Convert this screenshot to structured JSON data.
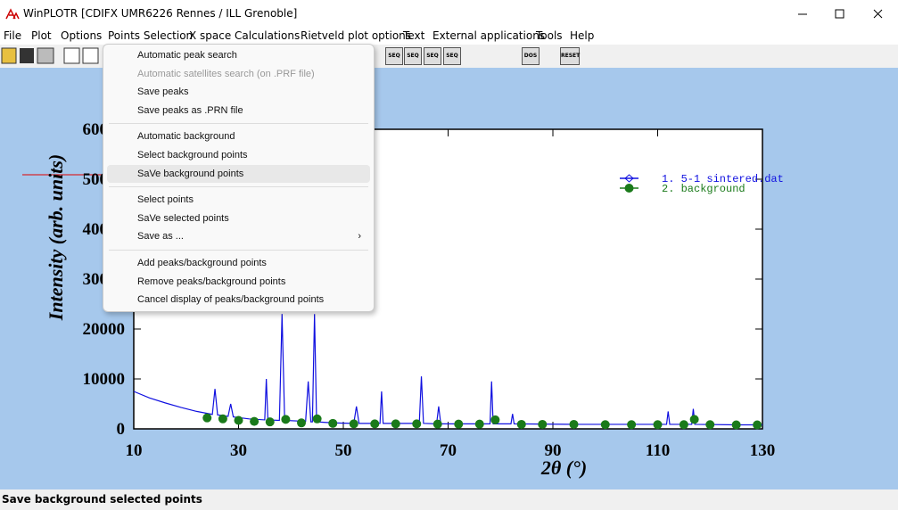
{
  "window": {
    "title": "WinPLOTR [CDIFX UMR6226 Rennes / ILL Grenoble]"
  },
  "menubar": [
    "File",
    "Plot",
    "Options",
    "Points Selection",
    "X space",
    "Calculations",
    "Rietveld plot options",
    "Text",
    "External applications",
    "Tools",
    "Help"
  ],
  "toolbar": [
    "SEQ",
    "SEQ",
    "SEQ",
    "SEQ",
    "DOS",
    "RESET"
  ],
  "menu": {
    "groups": [
      [
        {
          "label": "Automatic peak search"
        },
        {
          "label": "Automatic satellites search (on .PRF file)",
          "disabled": true
        },
        {
          "label": "Save peaks"
        },
        {
          "label": "Save peaks as .PRN file"
        }
      ],
      [
        {
          "label": "Automatic background"
        },
        {
          "label": "Select background points"
        },
        {
          "label": "SaVe background points",
          "highlighted": true
        }
      ],
      [
        {
          "label": "Select points"
        },
        {
          "label": "SaVe selected points"
        },
        {
          "label": "Save as ...",
          "submenu": true
        }
      ],
      [
        {
          "label": "Add peaks/background points"
        },
        {
          "label": "Remove peaks/background points"
        },
        {
          "label": "Cancel display of peaks/background points"
        }
      ]
    ]
  },
  "chart_data": {
    "type": "line",
    "x_label": "2θ (°)",
    "y_label": "Intensity (arb. units)",
    "xlim": [
      10,
      130
    ],
    "xticks": [
      10,
      30,
      50,
      70,
      90,
      110,
      130
    ],
    "ylim": [
      0,
      60000
    ],
    "yticks": [
      0,
      10000,
      20000,
      30000,
      40000,
      50000,
      60000
    ],
    "series": [
      {
        "name": "1. 5-1 sintered.dat",
        "color": "#1010e0",
        "x": [
          10,
          13,
          16,
          19,
          22,
          25,
          25.5,
          26,
          28,
          28.5,
          29,
          32,
          35,
          35.3,
          35.6,
          37.8,
          38.3,
          38.8,
          42.8,
          43.3,
          43.8,
          44.1,
          44.5,
          44.9,
          48,
          52,
          52.5,
          53,
          57,
          57.3,
          57.6,
          64.5,
          64.9,
          65.3,
          67.8,
          68.2,
          68.6,
          78,
          78.3,
          78.6,
          82,
          82.3,
          82.6,
          95,
          111.7,
          112,
          112.3,
          116.5,
          116.8,
          117.1,
          125,
          130
        ],
        "values": [
          7500,
          6200,
          5200,
          4300,
          3500,
          2900,
          8000,
          2800,
          2500,
          5000,
          2400,
          2000,
          1800,
          10000,
          1800,
          1700,
          23000,
          1700,
          1500,
          9500,
          1400,
          1400,
          23000,
          1400,
          1200,
          1100,
          4500,
          1100,
          1100,
          7500,
          1100,
          1100,
          10500,
          1100,
          1000,
          4500,
          1000,
          1000,
          9500,
          1000,
          1000,
          3000,
          1000,
          900,
          900,
          3500,
          900,
          900,
          4000,
          900,
          800,
          800
        ]
      },
      {
        "name": "2. background",
        "color": "#1a7a1a",
        "x": [
          24,
          27,
          30,
          33,
          36,
          39,
          42,
          45,
          48,
          52,
          56,
          60,
          64,
          68,
          72,
          76,
          79,
          84,
          88,
          94,
          100,
          105,
          110,
          115,
          117,
          120,
          125,
          129
        ],
        "values": [
          2200,
          2000,
          1700,
          1500,
          1400,
          1900,
          1200,
          2000,
          1100,
          1000,
          1000,
          1000,
          1000,
          950,
          950,
          950,
          1800,
          900,
          900,
          900,
          850,
          850,
          850,
          850,
          1900,
          850,
          800,
          800
        ]
      }
    ]
  },
  "status": "Save background selected points"
}
